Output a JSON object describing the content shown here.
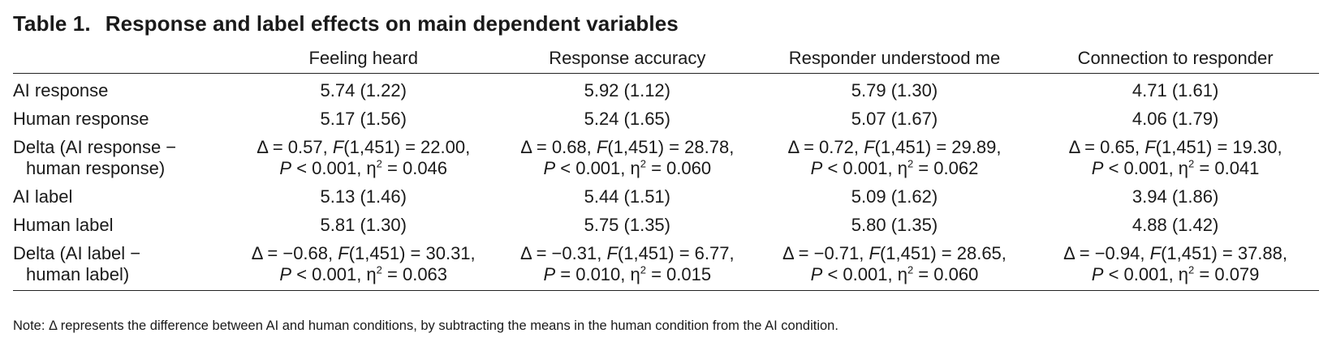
{
  "title": {
    "number": "Table 1.",
    "text": "Response and label effects on main dependent variables"
  },
  "columns": [
    "Feeling heard",
    "Response accuracy",
    "Responder understood me",
    "Connection to responder"
  ],
  "rows": {
    "ai_response": {
      "label": "AI response",
      "values": [
        "5.74 (1.22)",
        "5.92 (1.12)",
        "5.79 (1.30)",
        "4.71 (1.61)"
      ]
    },
    "human_response": {
      "label": "Human response",
      "values": [
        "5.17 (1.56)",
        "5.24 (1.65)",
        "5.07 (1.67)",
        "4.06 (1.79)"
      ]
    },
    "delta_response": {
      "label_line1": "Delta (AI response −",
      "label_line2": "human response)",
      "cells": [
        {
          "delta": "Δ = 0.57, ",
          "f_df": "(1,451) = 22.00,",
          "p": " < 0.001, η",
          "eta": " = 0.046"
        },
        {
          "delta": "Δ = 0.68, ",
          "f_df": "(1,451) = 28.78,",
          "p": " < 0.001, η",
          "eta": " = 0.060"
        },
        {
          "delta": "Δ = 0.72, ",
          "f_df": "(1,451) = 29.89,",
          "p": " < 0.001, η",
          "eta": " = 0.062"
        },
        {
          "delta": "Δ = 0.65, ",
          "f_df": "(1,451) = 19.30,",
          "p": " < 0.001, η",
          "eta": " = 0.041"
        }
      ]
    },
    "ai_label": {
      "label": "AI label",
      "values": [
        "5.13 (1.46)",
        "5.44 (1.51)",
        "5.09 (1.62)",
        "3.94 (1.86)"
      ]
    },
    "human_label": {
      "label": "Human label",
      "values": [
        "5.81 (1.30)",
        "5.75 (1.35)",
        "5.80 (1.35)",
        "4.88 (1.42)"
      ]
    },
    "delta_label": {
      "label_line1": "Delta (AI label −",
      "label_line2": "human label)",
      "cells": [
        {
          "delta": "Δ = −0.68, ",
          "f_df": "(1,451) = 30.31,",
          "p": " < 0.001, η",
          "eta": " = 0.063"
        },
        {
          "delta": "Δ = −0.31, ",
          "f_df": "(1,451) = 6.77,",
          "p": " = 0.010, η",
          "eta": " = 0.015"
        },
        {
          "delta": "Δ = −0.71, ",
          "f_df": "(1,451) = 28.65,",
          "p": " < 0.001, η",
          "eta": " = 0.060"
        },
        {
          "delta": "Δ = −0.94, ",
          "f_df": "(1,451) = 37.88,",
          "p": " < 0.001, η",
          "eta": " = 0.079"
        }
      ]
    }
  },
  "symbols": {
    "f": "F",
    "p": "P",
    "squared": "2"
  },
  "note": "Note: Δ represents the difference between AI and human conditions, by subtracting the means in the human condition from the AI condition."
}
